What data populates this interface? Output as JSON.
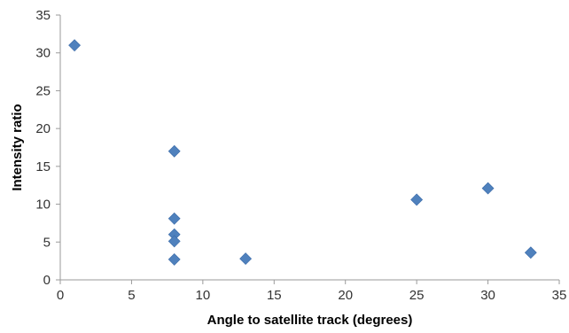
{
  "chart_data": {
    "type": "scatter",
    "title": "",
    "xlabel": "Angle to satellite track (degrees)",
    "ylabel": "Intensity ratio",
    "xlim": [
      0,
      35
    ],
    "ylim": [
      0,
      35
    ],
    "xticks": [
      0,
      5,
      10,
      15,
      20,
      25,
      30,
      35
    ],
    "yticks": [
      0,
      5,
      10,
      15,
      20,
      25,
      30,
      35
    ],
    "xtick_labels": [
      "0",
      "5",
      "10",
      "15",
      "20",
      "25",
      "30",
      "35"
    ],
    "ytick_labels": [
      "0",
      "5",
      "10",
      "15",
      "20",
      "25",
      "30",
      "35"
    ],
    "grid": false,
    "marker": "diamond",
    "color": "#4f81bd",
    "series": [
      {
        "points": [
          {
            "x": 1,
            "y": 31
          },
          {
            "x": 8,
            "y": 17
          },
          {
            "x": 8,
            "y": 8.1
          },
          {
            "x": 8,
            "y": 6
          },
          {
            "x": 8,
            "y": 5.1
          },
          {
            "x": 8,
            "y": 2.7
          },
          {
            "x": 13,
            "y": 2.8
          },
          {
            "x": 25,
            "y": 10.6
          },
          {
            "x": 30,
            "y": 12.1
          },
          {
            "x": 33,
            "y": 3.6
          }
        ]
      }
    ]
  }
}
